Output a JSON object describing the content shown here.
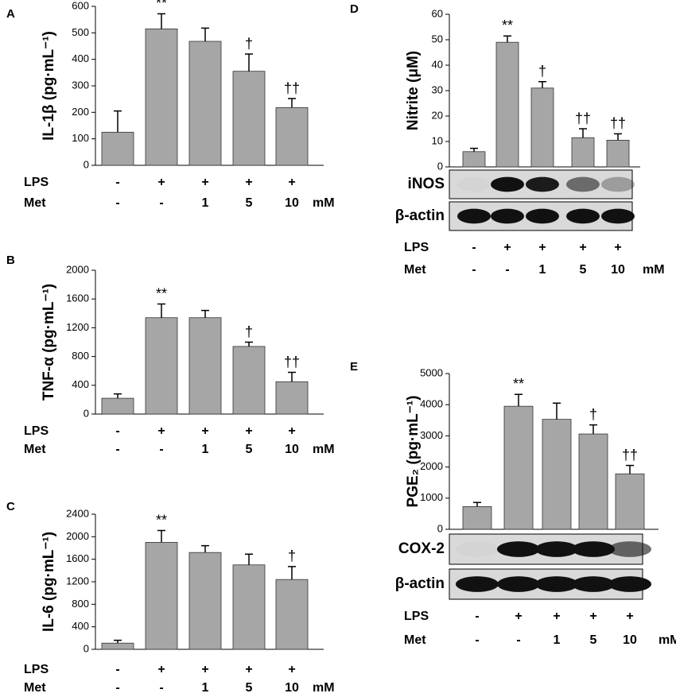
{
  "chart_data": [
    {
      "type": "bar",
      "panel": "A",
      "ylabel": "IL-1β (pg·mL⁻¹)",
      "ylim": [
        0,
        600
      ],
      "yticks": [
        0,
        100,
        200,
        300,
        400,
        500,
        600
      ],
      "color": "#a6a6a6",
      "values": [
        125,
        515,
        468,
        355,
        218
      ],
      "errors": [
        80,
        57,
        50,
        65,
        34
      ],
      "annotations": [
        null,
        "**",
        null,
        "†",
        "††"
      ],
      "treatments": [
        {
          "name": "LPS",
          "labels": [
            "-",
            "+",
            "+",
            "+",
            "+"
          ]
        },
        {
          "name": "Met",
          "labels": [
            "-",
            "-",
            "1",
            "5",
            "10"
          ],
          "unit": "mM"
        }
      ]
    },
    {
      "type": "bar",
      "panel": "B",
      "ylabel": "TNF-α (pg·mL⁻¹)",
      "ylim": [
        0,
        2000
      ],
      "yticks": [
        0,
        400,
        800,
        1200,
        1600,
        2000
      ],
      "color": "#a6a6a6",
      "values": [
        220,
        1340,
        1340,
        940,
        450
      ],
      "errors": [
        60,
        190,
        100,
        60,
        130
      ],
      "annotations": [
        null,
        "**",
        null,
        "†",
        "††"
      ],
      "treatments": [
        {
          "name": "LPS",
          "labels": [
            "-",
            "+",
            "+",
            "+",
            "+"
          ]
        },
        {
          "name": "Met",
          "labels": [
            "-",
            "-",
            "1",
            "5",
            "10"
          ],
          "unit": "mM"
        }
      ]
    },
    {
      "type": "bar",
      "panel": "C",
      "ylabel": "IL-6 (pg·mL⁻¹)",
      "ylim": [
        0,
        2400
      ],
      "yticks": [
        0,
        400,
        800,
        1200,
        1600,
        2000,
        2400
      ],
      "color": "#a6a6a6",
      "values": [
        110,
        1900,
        1720,
        1500,
        1240
      ],
      "errors": [
        50,
        210,
        120,
        190,
        230
      ],
      "annotations": [
        null,
        "**",
        null,
        null,
        "†"
      ],
      "treatments": [
        {
          "name": "LPS",
          "labels": [
            "-",
            "+",
            "+",
            "+",
            "+"
          ]
        },
        {
          "name": "Met",
          "labels": [
            "-",
            "-",
            "1",
            "5",
            "10"
          ],
          "unit": "mM"
        }
      ]
    },
    {
      "type": "bar",
      "panel": "D",
      "ylabel": "Nitrite (μM)",
      "ylim": [
        0,
        60
      ],
      "yticks": [
        0,
        10,
        20,
        30,
        40,
        50,
        60
      ],
      "color": "#a6a6a6",
      "values": [
        6,
        49,
        31,
        11.5,
        10.5
      ],
      "errors": [
        1.3,
        2.5,
        2.5,
        3.5,
        2.5
      ],
      "annotations": [
        null,
        "**",
        "†",
        "††",
        "††"
      ],
      "blots": [
        "iNOS",
        "β-actin"
      ],
      "treatments": [
        {
          "name": "LPS",
          "labels": [
            "-",
            "+",
            "+",
            "+",
            "+"
          ]
        },
        {
          "name": "Met",
          "labels": [
            "-",
            "-",
            "1",
            "5",
            "10"
          ],
          "unit": "mM"
        }
      ]
    },
    {
      "type": "bar",
      "panel": "E",
      "ylabel": "PGE₂ (pg·mL⁻¹)",
      "ylim": [
        0,
        5000
      ],
      "yticks": [
        0,
        1000,
        2000,
        3000,
        4000,
        5000
      ],
      "color": "#a6a6a6",
      "values": [
        730,
        3950,
        3530,
        3060,
        1780
      ],
      "errors": [
        130,
        380,
        520,
        290,
        270
      ],
      "annotations": [
        null,
        "**",
        null,
        "†",
        "††"
      ],
      "blots": [
        "COX-2",
        "β-actin"
      ],
      "treatments": [
        {
          "name": "LPS",
          "labels": [
            "-",
            "+",
            "+",
            "+",
            "+"
          ]
        },
        {
          "name": "Met",
          "labels": [
            "-",
            "-",
            "1",
            "5",
            "10"
          ],
          "unit": "mM"
        }
      ]
    }
  ]
}
